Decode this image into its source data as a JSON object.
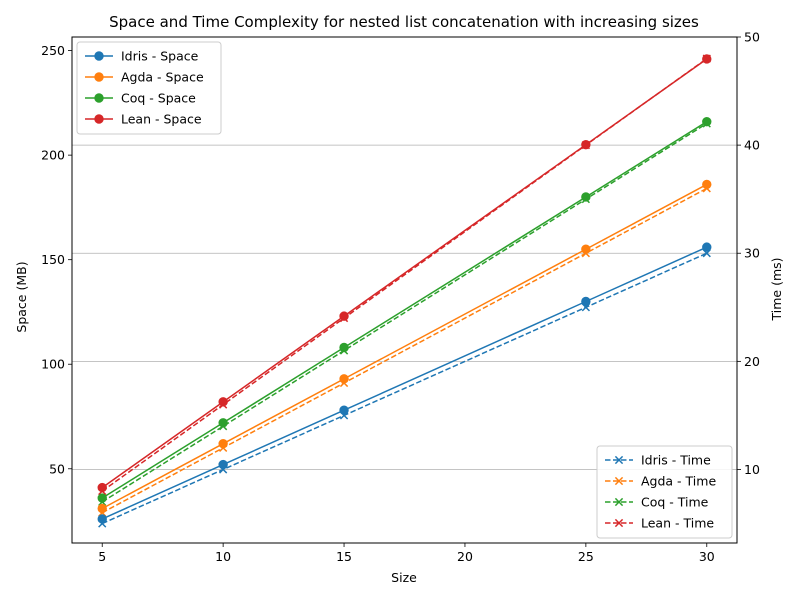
{
  "chart_data": {
    "type": "line",
    "title": "Space and Time Complexity for nested list concatenation with increasing sizes",
    "xlabel": "Size",
    "ylabel_left": "Space (MB)",
    "ylabel_right": "Time (ms)",
    "x": [
      5,
      10,
      15,
      25,
      30
    ],
    "xticks": [
      5,
      10,
      15,
      20,
      25,
      30
    ],
    "xlim": [
      3.75,
      31.25
    ],
    "ylim_left": [
      14.5,
      256.5
    ],
    "ylim_right": [
      3.2,
      50
    ],
    "yticks_left": [
      50,
      100,
      150,
      200,
      250
    ],
    "yticks_right": [
      10,
      20,
      30,
      40,
      50
    ],
    "grid": "horizontal lines at right-axis ticks",
    "space_legend_position": "upper left",
    "time_legend_position": "lower right",
    "space_series": [
      {
        "name": "Idris - Space",
        "color": "#1f77b4",
        "values": [
          26,
          52,
          78,
          130,
          156
        ]
      },
      {
        "name": "Agda - Space",
        "color": "#ff7f0e",
        "values": [
          31,
          62,
          93,
          155,
          186
        ]
      },
      {
        "name": "Coq - Space",
        "color": "#2ca02c",
        "values": [
          36,
          72,
          108,
          180,
          216
        ]
      },
      {
        "name": "Lean - Space",
        "color": "#d62728",
        "values": [
          41,
          82,
          123,
          205,
          246
        ]
      }
    ],
    "time_series": [
      {
        "name": "Idris - Time",
        "color": "#1f77b4",
        "values": [
          5,
          10,
          15,
          25,
          30
        ]
      },
      {
        "name": "Agda - Time",
        "color": "#ff7f0e",
        "values": [
          6,
          12,
          18,
          30,
          36
        ]
      },
      {
        "name": "Coq - Time",
        "color": "#2ca02c",
        "values": [
          7,
          14,
          21,
          35,
          42
        ]
      },
      {
        "name": "Lean - Time",
        "color": "#d62728",
        "values": [
          8,
          16,
          24,
          40,
          48
        ]
      }
    ]
  }
}
